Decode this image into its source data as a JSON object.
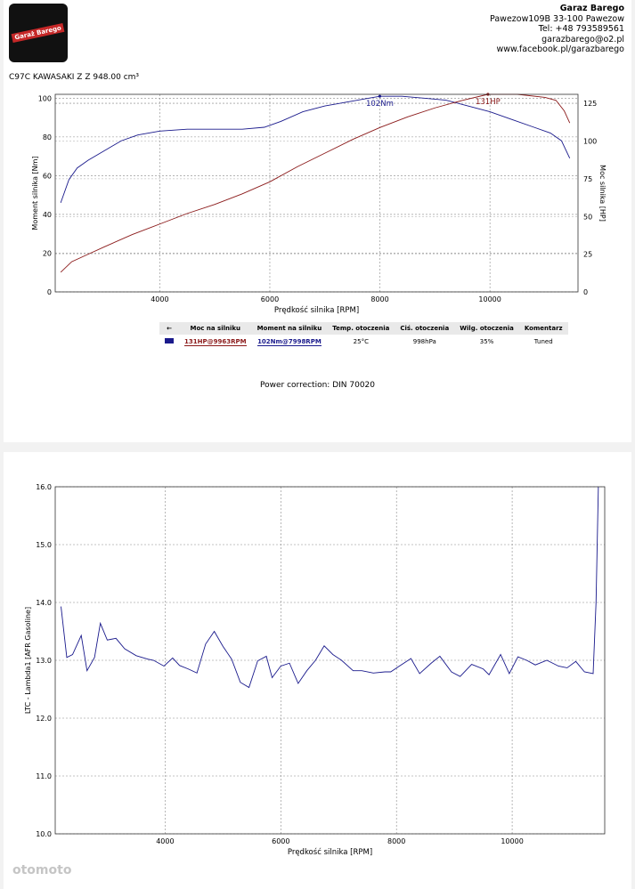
{
  "company": {
    "logo_text": "Garaż Barego",
    "name": "Garaz Barego",
    "address": "Pawezow109B 33-100 Pawezow",
    "phone": "Tel: +48 793589561",
    "email": "garazbarego@o2.pl",
    "website": "www.facebook.pl/garazbarego"
  },
  "engine_title": "C97C KAWASAKI Z Z 948.00 cm³",
  "legend_table": {
    "headers": [
      "←",
      "Moc na silniku",
      "Moment na silniku",
      "Temp. otoczenia",
      "Ciś. otoczenia",
      "Wilg. otoczenia",
      "Komentarz"
    ],
    "row": {
      "power": "131HP@9963RPM",
      "torque": "102Nm@7998RPM",
      "temp": "25°C",
      "pressure": "998hPa",
      "humidity": "35%",
      "comment": "Tuned"
    }
  },
  "power_correction": "Power correction: DIN 70020",
  "watermark": "otomoto",
  "colors": {
    "torque": "#1a1a8c",
    "power": "#8b1a1a",
    "afr": "#1a1a8c"
  },
  "chart_data": [
    {
      "type": "line",
      "title": "",
      "xlabel": "Prędkość silnika [RPM]",
      "ylabel": "Moment silnika [Nm]",
      "y2label": "Moc silnika [HP]",
      "xlim": [
        2100,
        11600
      ],
      "ylim": [
        0,
        102
      ],
      "y2lim": [
        0,
        131
      ],
      "x_ticks": [
        4000,
        6000,
        8000,
        10000
      ],
      "y_ticks": [
        0,
        20,
        40,
        60,
        80,
        100
      ],
      "y2_ticks": [
        0,
        25,
        50,
        75,
        100,
        125
      ],
      "grid": true,
      "peak_labels": [
        "102Nm",
        "131HP"
      ],
      "series": [
        {
          "name": "Moment na silniku",
          "axis": "left",
          "x": [
            2200,
            2350,
            2500,
            2700,
            3000,
            3300,
            3600,
            4000,
            4500,
            5000,
            5500,
            5900,
            6200,
            6600,
            7000,
            7400,
            7800,
            8000,
            8400,
            8800,
            9200,
            9600,
            10000,
            10400,
            10800,
            11100,
            11300,
            11450
          ],
          "values": [
            46,
            58,
            64,
            68,
            73,
            78,
            81,
            83,
            84,
            84,
            84,
            85,
            88,
            93,
            96,
            98,
            100,
            101,
            101,
            100,
            99,
            96,
            93,
            89,
            85,
            82,
            78,
            69
          ]
        },
        {
          "name": "Moc na silniku",
          "axis": "right",
          "x": [
            2200,
            2400,
            2700,
            3000,
            3500,
            4000,
            4500,
            5000,
            5500,
            6000,
            6500,
            7000,
            7500,
            8000,
            8500,
            9000,
            9500,
            9963,
            10500,
            11000,
            11200,
            11350,
            11450
          ],
          "values": [
            13,
            20,
            25,
            30,
            38,
            45,
            52,
            58,
            65,
            73,
            83,
            92,
            101,
            109,
            116,
            122,
            127,
            131,
            131,
            129,
            127,
            120,
            112
          ]
        }
      ]
    },
    {
      "type": "line",
      "title": "",
      "xlabel": "Prędkość silnika [RPM]",
      "ylabel": "LTC - Lambda1 [AFR Gasoline]",
      "xlim": [
        2100,
        11600
      ],
      "ylim": [
        10.0,
        16.0
      ],
      "x_ticks": [
        4000,
        6000,
        8000,
        10000
      ],
      "y_ticks": [
        10.0,
        11.0,
        12.0,
        13.0,
        14.0,
        15.0,
        16.0
      ],
      "grid": true,
      "series": [
        {
          "name": "LTC - Lambda1",
          "x": [
            2200,
            2300,
            2400,
            2550,
            2650,
            2780,
            2880,
            3000,
            3150,
            3300,
            3500,
            3700,
            3800,
            3980,
            4130,
            4250,
            4400,
            4550,
            4700,
            4850,
            5000,
            5150,
            5300,
            5450,
            5600,
            5750,
            5850,
            6000,
            6150,
            6300,
            6450,
            6600,
            6750,
            6900,
            7050,
            7250,
            7400,
            7600,
            7800,
            7900,
            8050,
            8250,
            8400,
            8600,
            8750,
            8950,
            9100,
            9300,
            9500,
            9600,
            9800,
            9950,
            10100,
            10250,
            10400,
            10600,
            10800,
            10950,
            11100,
            11250,
            11400,
            11450,
            11490
          ],
          "values": [
            13.93,
            13.05,
            13.1,
            13.43,
            12.82,
            13.05,
            13.64,
            13.35,
            13.38,
            13.2,
            13.08,
            13.02,
            13.0,
            12.9,
            13.04,
            12.91,
            12.85,
            12.78,
            13.28,
            13.5,
            13.24,
            13.02,
            12.62,
            12.53,
            12.99,
            13.07,
            12.7,
            12.9,
            12.95,
            12.6,
            12.82,
            13.0,
            13.25,
            13.1,
            13.0,
            12.82,
            12.82,
            12.78,
            12.8,
            12.8,
            12.9,
            13.03,
            12.77,
            12.95,
            13.07,
            12.8,
            12.72,
            12.93,
            12.85,
            12.75,
            13.1,
            12.77,
            13.06,
            13.0,
            12.92,
            13.0,
            12.9,
            12.87,
            12.98,
            12.8,
            12.77,
            14.0,
            16.0
          ]
        }
      ]
    }
  ]
}
